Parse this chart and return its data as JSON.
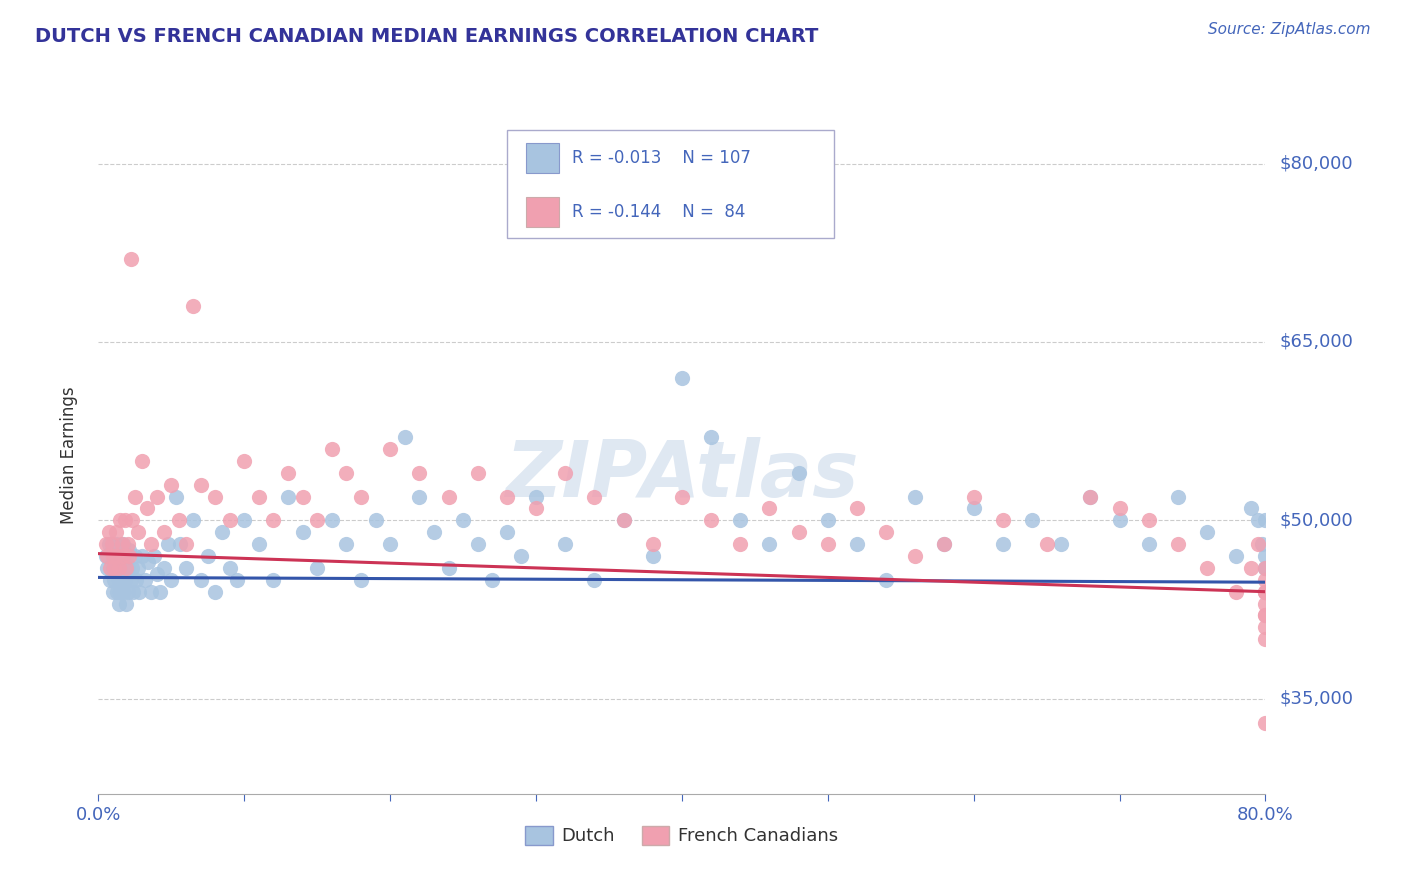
{
  "title": "DUTCH VS FRENCH CANADIAN MEDIAN EARNINGS CORRELATION CHART",
  "source": "Source: ZipAtlas.com",
  "ylabel": "Median Earnings",
  "xlim": [
    0.0,
    0.8
  ],
  "ylim": [
    27000,
    84000
  ],
  "xticks": [
    0.0,
    0.1,
    0.2,
    0.3,
    0.4,
    0.5,
    0.6,
    0.7,
    0.8
  ],
  "xticklabels": [
    "0.0%",
    "",
    "",
    "",
    "",
    "",
    "",
    "",
    "80.0%"
  ],
  "ytick_positions": [
    35000,
    50000,
    65000,
    80000
  ],
  "ytick_labels": [
    "$35,000",
    "$50,000",
    "$65,000",
    "$80,000"
  ],
  "grid_color": "#cccccc",
  "background_color": "#ffffff",
  "dutch_color": "#a8c4e0",
  "french_color": "#f0a0b0",
  "dutch_line_color": "#3355aa",
  "french_line_color": "#cc3355",
  "dutch_R": -0.013,
  "dutch_N": 107,
  "french_R": -0.144,
  "french_N": 84,
  "dutch_intercept": 45200,
  "dutch_slope": -500,
  "french_intercept": 47200,
  "french_slope": -4000,
  "title_color": "#333399",
  "axis_color": "#4466bb",
  "label_color": "#333333",
  "watermark": "ZIPAtlas",
  "dutch_x": [
    0.005,
    0.006,
    0.007,
    0.008,
    0.009,
    0.01,
    0.01,
    0.011,
    0.011,
    0.012,
    0.012,
    0.013,
    0.013,
    0.014,
    0.014,
    0.015,
    0.015,
    0.016,
    0.016,
    0.017,
    0.017,
    0.018,
    0.018,
    0.019,
    0.019,
    0.02,
    0.02,
    0.021,
    0.022,
    0.023,
    0.024,
    0.025,
    0.026,
    0.027,
    0.028,
    0.03,
    0.032,
    0.034,
    0.036,
    0.038,
    0.04,
    0.042,
    0.045,
    0.048,
    0.05,
    0.053,
    0.056,
    0.06,
    0.065,
    0.07,
    0.075,
    0.08,
    0.085,
    0.09,
    0.095,
    0.1,
    0.11,
    0.12,
    0.13,
    0.14,
    0.15,
    0.16,
    0.17,
    0.18,
    0.19,
    0.2,
    0.21,
    0.22,
    0.23,
    0.24,
    0.25,
    0.26,
    0.27,
    0.28,
    0.29,
    0.3,
    0.32,
    0.34,
    0.36,
    0.38,
    0.4,
    0.42,
    0.44,
    0.46,
    0.48,
    0.5,
    0.52,
    0.54,
    0.56,
    0.58,
    0.6,
    0.62,
    0.64,
    0.66,
    0.68,
    0.7,
    0.72,
    0.74,
    0.76,
    0.78,
    0.79,
    0.795,
    0.798,
    0.8,
    0.8,
    0.8,
    0.8
  ],
  "dutch_y": [
    47000,
    46000,
    48000,
    45000,
    47500,
    44000,
    46000,
    47000,
    45000,
    48000,
    46000,
    44000,
    47000,
    45000,
    43000,
    46000,
    44000,
    47000,
    45000,
    48000,
    44000,
    46000,
    45000,
    47000,
    43000,
    46000,
    44000,
    47500,
    45000,
    46000,
    44000,
    47000,
    45000,
    46000,
    44000,
    47000,
    45000,
    46500,
    44000,
    47000,
    45500,
    44000,
    46000,
    48000,
    45000,
    52000,
    48000,
    46000,
    50000,
    45000,
    47000,
    44000,
    49000,
    46000,
    45000,
    50000,
    48000,
    45000,
    52000,
    49000,
    46000,
    50000,
    48000,
    45000,
    50000,
    48000,
    57000,
    52000,
    49000,
    46000,
    50000,
    48000,
    45000,
    49000,
    47000,
    52000,
    48000,
    45000,
    50000,
    47000,
    62000,
    57000,
    50000,
    48000,
    54000,
    50000,
    48000,
    45000,
    52000,
    48000,
    51000,
    48000,
    50000,
    48000,
    52000,
    50000,
    48000,
    52000,
    49000,
    47000,
    51000,
    50000,
    48000,
    46000,
    50000,
    47000,
    46000
  ],
  "french_x": [
    0.005,
    0.006,
    0.007,
    0.008,
    0.009,
    0.01,
    0.011,
    0.012,
    0.013,
    0.014,
    0.015,
    0.016,
    0.017,
    0.018,
    0.019,
    0.02,
    0.021,
    0.022,
    0.023,
    0.025,
    0.027,
    0.03,
    0.033,
    0.036,
    0.04,
    0.045,
    0.05,
    0.055,
    0.06,
    0.065,
    0.07,
    0.08,
    0.09,
    0.1,
    0.11,
    0.12,
    0.13,
    0.14,
    0.15,
    0.16,
    0.17,
    0.18,
    0.2,
    0.22,
    0.24,
    0.26,
    0.28,
    0.3,
    0.32,
    0.34,
    0.36,
    0.38,
    0.4,
    0.42,
    0.44,
    0.46,
    0.48,
    0.5,
    0.52,
    0.54,
    0.56,
    0.58,
    0.6,
    0.62,
    0.65,
    0.68,
    0.7,
    0.72,
    0.74,
    0.76,
    0.78,
    0.79,
    0.795,
    0.8,
    0.8,
    0.8,
    0.8,
    0.8,
    0.8,
    0.8,
    0.8,
    0.8,
    0.8,
    0.8
  ],
  "french_y": [
    48000,
    47000,
    49000,
    46000,
    48000,
    47000,
    46000,
    49000,
    47000,
    46000,
    50000,
    48000,
    47000,
    50000,
    46000,
    48000,
    47000,
    72000,
    50000,
    52000,
    49000,
    55000,
    51000,
    48000,
    52000,
    49000,
    53000,
    50000,
    48000,
    68000,
    53000,
    52000,
    50000,
    55000,
    52000,
    50000,
    54000,
    52000,
    50000,
    56000,
    54000,
    52000,
    56000,
    54000,
    52000,
    54000,
    52000,
    51000,
    54000,
    52000,
    50000,
    48000,
    52000,
    50000,
    48000,
    51000,
    49000,
    48000,
    51000,
    49000,
    47000,
    48000,
    52000,
    50000,
    48000,
    52000,
    51000,
    50000,
    48000,
    46000,
    44000,
    46000,
    48000,
    46000,
    44000,
    42000,
    45000,
    43000,
    41000,
    44000,
    42000,
    40000,
    33000,
    44000
  ]
}
